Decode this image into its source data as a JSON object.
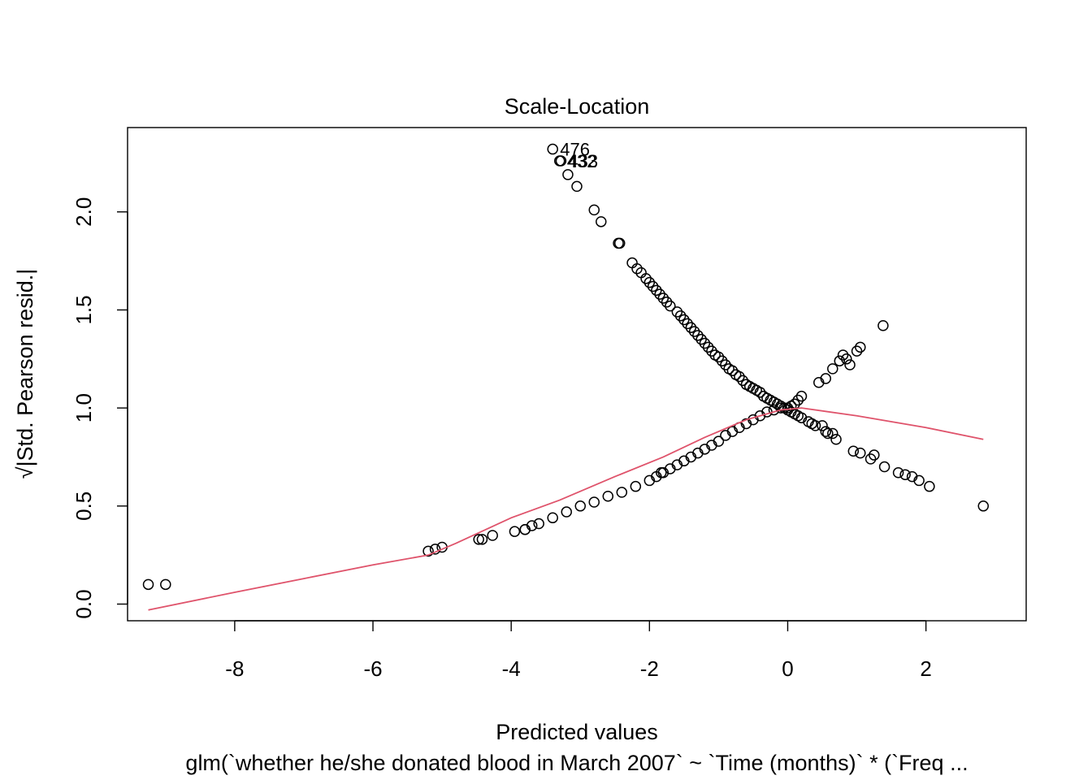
{
  "chart_data": {
    "type": "scatter",
    "title": "Scale-Location",
    "xlabel": "Predicted values",
    "ylabel": "√|Std. Pearson resid.|",
    "caption": "glm(`whether he/she donated blood in March 2007` ~ `Time (months)` * (`Freq ...",
    "xlim": [
      -9.55,
      3.45
    ],
    "ylim": [
      -0.085,
      2.43
    ],
    "xticks": [
      -8,
      -6,
      -4,
      -2,
      0,
      2
    ],
    "yticks": [
      0.0,
      0.5,
      1.0,
      1.5,
      2.0
    ],
    "xtick_labels": [
      "-8",
      "-6",
      "-4",
      "-2",
      "0",
      "2"
    ],
    "ytick_labels": [
      "0.0",
      "0.5",
      "1.0",
      "1.5",
      "2.0"
    ],
    "grid": false,
    "series": [
      {
        "marker": "open-circle",
        "color": "#000000",
        "x": [
          -9.25,
          -9.0,
          -5.2,
          -5.1,
          -5.0,
          -4.47,
          -4.42,
          -4.27,
          -3.95,
          -3.8,
          -3.7,
          -3.4,
          -3.3,
          -3.28,
          -3.18,
          -3.05,
          -2.8,
          -2.7,
          -2.45,
          -2.43,
          -2.25,
          -2.18,
          -2.12,
          -2.05,
          -2.0,
          -1.95,
          -1.9,
          -1.85,
          -1.8,
          -1.75,
          -1.7,
          -1.6,
          -1.55,
          -1.5,
          -1.45,
          -1.4,
          -1.35,
          -1.3,
          -1.25,
          -1.2,
          -1.15,
          -1.1,
          -1.05,
          -1.0,
          -0.95,
          -0.9,
          -0.85,
          -0.8,
          -0.75,
          -0.7,
          -0.65,
          -0.6,
          -0.55,
          -0.5,
          -0.45,
          -0.4,
          -0.35,
          -0.3,
          -0.25,
          -0.2,
          -0.15,
          -0.1,
          -0.05,
          0.0,
          0.05,
          0.1,
          0.15,
          0.2,
          0.3,
          0.35,
          0.4,
          0.5,
          0.55,
          0.58,
          0.65,
          0.7,
          0.95,
          1.05,
          1.2,
          1.25,
          1.4,
          1.6,
          1.7,
          1.8,
          1.9,
          2.05,
          2.83,
          0.0,
          0.05,
          0.1,
          0.15,
          0.2,
          0.45,
          0.55,
          0.65,
          0.75,
          0.8,
          0.85,
          0.9,
          1.0,
          1.05,
          1.38,
          -3.8,
          -3.6,
          -3.4,
          -3.2,
          -3.0,
          -2.8,
          -2.6,
          -2.4,
          -2.2,
          -2.0,
          -1.9,
          -1.8,
          -1.7,
          -1.6,
          -1.5,
          -1.4,
          -1.3,
          -1.2,
          -1.1,
          -1.0,
          -0.9,
          -0.8,
          -0.7,
          -0.6,
          -0.5,
          -0.4,
          -0.3,
          -0.2,
          -0.1,
          -1.83
        ],
        "y": [
          0.1,
          0.1,
          0.27,
          0.28,
          0.29,
          0.33,
          0.33,
          0.35,
          0.37,
          0.38,
          0.4,
          2.32,
          2.26,
          2.26,
          2.19,
          2.13,
          2.01,
          1.95,
          1.84,
          1.84,
          1.74,
          1.71,
          1.69,
          1.66,
          1.64,
          1.62,
          1.6,
          1.58,
          1.56,
          1.54,
          1.52,
          1.49,
          1.47,
          1.45,
          1.43,
          1.41,
          1.39,
          1.37,
          1.35,
          1.33,
          1.31,
          1.29,
          1.27,
          1.26,
          1.24,
          1.22,
          1.2,
          1.19,
          1.17,
          1.16,
          1.14,
          1.12,
          1.11,
          1.1,
          1.09,
          1.08,
          1.06,
          1.05,
          1.04,
          1.03,
          1.02,
          1.01,
          1.0,
          0.99,
          0.98,
          0.97,
          0.96,
          0.95,
          0.93,
          0.92,
          0.91,
          0.91,
          0.88,
          0.87,
          0.87,
          0.84,
          0.78,
          0.77,
          0.74,
          0.76,
          0.7,
          0.67,
          0.66,
          0.65,
          0.63,
          0.6,
          0.5,
          1.0,
          1.01,
          1.02,
          1.04,
          1.06,
          1.13,
          1.15,
          1.2,
          1.24,
          1.27,
          1.25,
          1.22,
          1.29,
          1.31,
          1.42,
          0.38,
          0.41,
          0.44,
          0.47,
          0.5,
          0.52,
          0.55,
          0.57,
          0.6,
          0.63,
          0.65,
          0.67,
          0.69,
          0.71,
          0.73,
          0.75,
          0.77,
          0.79,
          0.81,
          0.83,
          0.86,
          0.88,
          0.9,
          0.92,
          0.94,
          0.96,
          0.98,
          0.99,
          1.0,
          0.67
        ]
      },
      {
        "type": "line",
        "color": "#DF536B",
        "x": [
          -9.25,
          -8.0,
          -7.0,
          -6.0,
          -5.2,
          -4.8,
          -4.0,
          -3.3,
          -2.5,
          -1.8,
          -1.2,
          -0.6,
          -0.1,
          0.2,
          1.0,
          2.0,
          2.83
        ],
        "y": [
          -0.03,
          0.06,
          0.13,
          0.2,
          0.25,
          0.31,
          0.44,
          0.53,
          0.65,
          0.75,
          0.85,
          0.94,
          0.99,
          1.0,
          0.96,
          0.9,
          0.84
        ]
      }
    ],
    "point_labels": [
      {
        "text": "476",
        "x": -3.4,
        "y": 2.32
      },
      {
        "text": "433",
        "x": -3.28,
        "y": 2.26
      },
      {
        "text": "432",
        "x": -3.3,
        "y": 2.26
      }
    ]
  }
}
